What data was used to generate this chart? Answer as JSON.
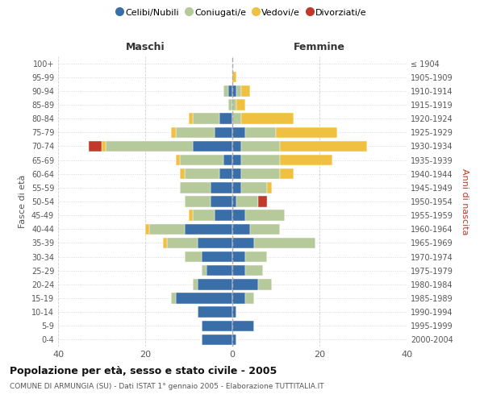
{
  "age_groups_bottom_to_top": [
    "0-4",
    "5-9",
    "10-14",
    "15-19",
    "20-24",
    "25-29",
    "30-34",
    "35-39",
    "40-44",
    "45-49",
    "50-54",
    "55-59",
    "60-64",
    "65-69",
    "70-74",
    "75-79",
    "80-84",
    "85-89",
    "90-94",
    "95-99",
    "100+"
  ],
  "birth_years_bottom_to_top": [
    "2000-2004",
    "1995-1999",
    "1990-1994",
    "1985-1989",
    "1980-1984",
    "1975-1979",
    "1970-1974",
    "1965-1969",
    "1960-1964",
    "1955-1959",
    "1950-1954",
    "1945-1949",
    "1940-1944",
    "1935-1939",
    "1930-1934",
    "1925-1929",
    "1920-1924",
    "1915-1919",
    "1910-1914",
    "1905-1909",
    "≤ 1904"
  ],
  "males": {
    "celibi": [
      7,
      7,
      8,
      13,
      8,
      6,
      7,
      8,
      11,
      4,
      5,
      5,
      3,
      2,
      9,
      4,
      3,
      0,
      1,
      0,
      0
    ],
    "coniugati": [
      0,
      0,
      0,
      1,
      1,
      1,
      4,
      7,
      8,
      5,
      6,
      7,
      8,
      10,
      20,
      9,
      6,
      1,
      1,
      0,
      0
    ],
    "vedovi": [
      0,
      0,
      0,
      0,
      0,
      0,
      0,
      1,
      1,
      1,
      0,
      0,
      1,
      1,
      1,
      1,
      1,
      0,
      0,
      0,
      0
    ],
    "divorziati": [
      0,
      0,
      0,
      0,
      0,
      0,
      0,
      0,
      0,
      0,
      0,
      0,
      0,
      0,
      3,
      0,
      0,
      0,
      0,
      0,
      0
    ]
  },
  "females": {
    "nubili": [
      1,
      5,
      1,
      3,
      6,
      3,
      3,
      5,
      4,
      3,
      1,
      2,
      2,
      2,
      2,
      3,
      0,
      0,
      1,
      0,
      0
    ],
    "coniugate": [
      0,
      0,
      0,
      2,
      3,
      4,
      5,
      14,
      7,
      9,
      5,
      6,
      9,
      9,
      9,
      7,
      2,
      1,
      1,
      0,
      0
    ],
    "vedove": [
      0,
      0,
      0,
      0,
      0,
      0,
      0,
      0,
      0,
      0,
      0,
      1,
      3,
      12,
      20,
      14,
      12,
      2,
      2,
      1,
      0
    ],
    "divorziate": [
      0,
      0,
      0,
      0,
      0,
      0,
      0,
      0,
      0,
      0,
      2,
      0,
      0,
      0,
      0,
      0,
      0,
      0,
      0,
      0,
      0
    ]
  },
  "colors": {
    "celibi_nubili": "#3a6ea8",
    "coniugati": "#b5c99a",
    "vedovi": "#f0c040",
    "divorziati": "#c0392b"
  },
  "title": "Popolazione per età, sesso e stato civile - 2005",
  "subtitle": "COMUNE DI ARMUNGIA (SU) - Dati ISTAT 1° gennaio 2005 - Elaborazione TUTTITALIA.IT",
  "xlabel_left": "Maschi",
  "xlabel_right": "Femmine",
  "ylabel_left": "Fasce di età",
  "ylabel_right": "Anni di nascita",
  "xlim": [
    -40,
    40
  ],
  "xticks": [
    -40,
    -20,
    0,
    20,
    40
  ],
  "xticklabels": [
    "40",
    "20",
    "0",
    "20",
    "40"
  ],
  "background_color": "#ffffff",
  "grid_color": "#cccccc",
  "legend_labels": [
    "Celibi/Nubili",
    "Coniugati/e",
    "Vedovi/e",
    "Divorziati/e"
  ]
}
